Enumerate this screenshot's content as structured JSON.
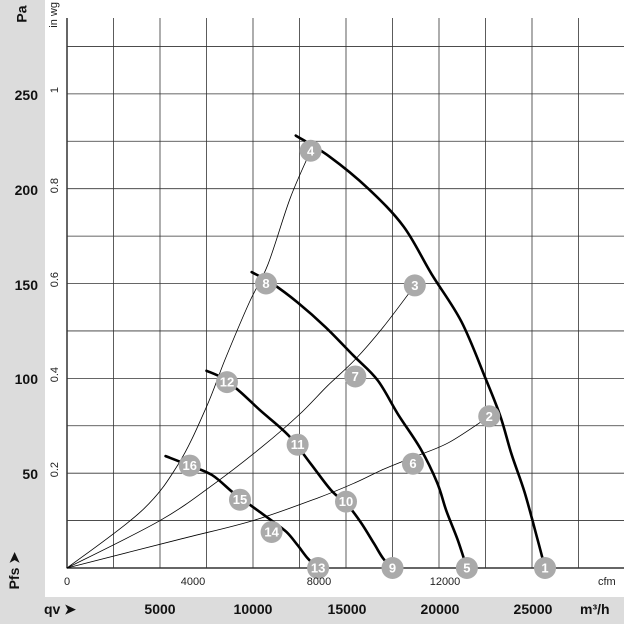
{
  "chart_data": {
    "type": "line",
    "title": "",
    "xlabel": "qv",
    "ylabel": "Pfs",
    "x_unit": "m³/h",
    "x_unit_secondary": "cfm",
    "y_unit": "Pa",
    "y_unit_secondary": "in wg",
    "xlim": [
      0,
      30000
    ],
    "ylim": [
      0,
      290
    ],
    "x_ticks": [
      5000,
      10000,
      15000,
      20000,
      25000
    ],
    "y_ticks": [
      50,
      100,
      150,
      200,
      250
    ],
    "x_ticks_secondary": [
      0,
      4000,
      8000,
      12000
    ],
    "y_ticks_secondary": [
      "0.2",
      "0.4",
      "0.6",
      "0.8",
      "1"
    ],
    "grid": true,
    "series": [
      {
        "x": [
          12300,
          14100,
          16200,
          18100,
          19600,
          21200,
          22500,
          23300,
          23900,
          24600,
          25300,
          25700
        ],
        "y": [
          228,
          217,
          200,
          180,
          155,
          130,
          100,
          80,
          60,
          40,
          15,
          0
        ]
      },
      {
        "x": [
          9930,
          11030,
          12400,
          13900,
          15400,
          16700,
          17800,
          19000,
          19900,
          20400,
          21000,
          21500
        ],
        "y": [
          156,
          150,
          140,
          127,
          112,
          99,
          81,
          63,
          45,
          30,
          15,
          0
        ]
      },
      {
        "x": [
          7500,
          8400,
          9300,
          10400,
          11900,
          13100,
          14200,
          15100,
          15800,
          16500,
          17000,
          17500
        ],
        "y": [
          104,
          100,
          93,
          83,
          70,
          55,
          41,
          33,
          24,
          13,
          5,
          0
        ]
      },
      {
        "x": [
          5300,
          6600,
          7800,
          8900,
          9600,
          10300,
          11000,
          11800,
          12400,
          12950,
          13500,
          13700
        ],
        "y": [
          59,
          54,
          49,
          40,
          35,
          30,
          25,
          19,
          12,
          5,
          0,
          0
        ]
      },
      {
        "x": [
          0,
          4000,
          6000,
          7500,
          8500,
          9800,
          10800,
          12000,
          13100
        ],
        "y": [
          0,
          30,
          55,
          85,
          110,
          140,
          160,
          195,
          220
        ]
      },
      {
        "x": [
          0,
          5000,
          8000,
          10500,
          12500,
          14000,
          15500,
          17000,
          18700
        ],
        "y": [
          0,
          25,
          45,
          64,
          81,
          96,
          110,
          127,
          149
        ]
      },
      {
        "x": [
          0,
          6000,
          10000,
          13500,
          15500,
          17000,
          18500,
          20500,
          22700
        ],
        "y": [
          0,
          15,
          25,
          37,
          45,
          52,
          58,
          66,
          80
        ]
      }
    ],
    "points": [
      {
        "label": "1",
        "x": 25700,
        "y": 0
      },
      {
        "label": "2",
        "x": 22700,
        "y": 80
      },
      {
        "label": "3",
        "x": 18700,
        "y": 149
      },
      {
        "label": "4",
        "x": 13100,
        "y": 220
      },
      {
        "label": "5",
        "x": 21500,
        "y": 0
      },
      {
        "label": "6",
        "x": 18600,
        "y": 55
      },
      {
        "label": "7",
        "x": 15500,
        "y": 101
      },
      {
        "label": "8",
        "x": 10700,
        "y": 150
      },
      {
        "label": "9",
        "x": 17500,
        "y": 0
      },
      {
        "label": "10",
        "x": 15000,
        "y": 35
      },
      {
        "label": "11",
        "x": 12400,
        "y": 65
      },
      {
        "label": "12",
        "x": 8600,
        "y": 98
      },
      {
        "label": "13",
        "x": 13500,
        "y": 0
      },
      {
        "label": "14",
        "x": 11000,
        "y": 19
      },
      {
        "label": "15",
        "x": 9300,
        "y": 36
      },
      {
        "label": "16",
        "x": 6600,
        "y": 54
      }
    ]
  },
  "axis_text": {
    "y_unit": "Pa",
    "y_unit_secondary": "in wg",
    "x_unit": "m³/h",
    "x_unit_secondary": "cfm",
    "x_name": "qv",
    "y_name": "Pfs",
    "arrow": "➤",
    "y_ticks": [
      "50",
      "100",
      "150",
      "200",
      "250"
    ],
    "x_ticks": [
      "5000",
      "10000",
      "15000",
      "20000",
      "25000"
    ],
    "x_ticks_secondary": [
      "0",
      "4000",
      "8000",
      "12000"
    ],
    "y_ticks_secondary": [
      "0.2",
      "0.4",
      "0.6",
      "0.8",
      "1"
    ]
  },
  "colors": {
    "background": "#ffffff",
    "strip": "#dcdcdc",
    "grid": "#333333",
    "curve": "#000000",
    "marker": "#aaaaaa",
    "marker_text": "#ffffff"
  }
}
